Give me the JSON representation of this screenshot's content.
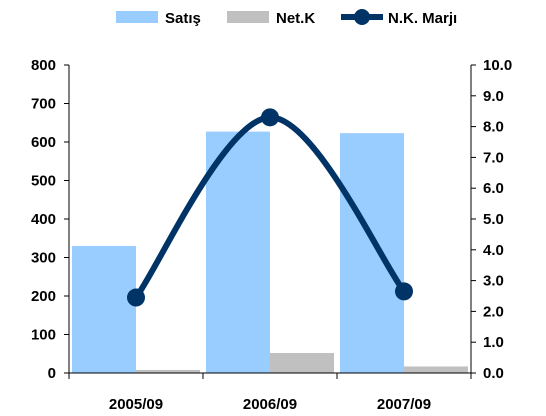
{
  "chart_data": {
    "type": "bar",
    "categories": [
      "2005/09",
      "2006/09",
      "2007/09"
    ],
    "series": [
      {
        "name": "Satış",
        "kind": "bar",
        "axis": "left",
        "color": "#99CCFF",
        "values": [
          330,
          627,
          623
        ]
      },
      {
        "name": "Net.K",
        "kind": "bar",
        "axis": "left",
        "color": "#C0C0C0",
        "values": [
          8,
          52,
          17
        ]
      },
      {
        "name": "N.K. Marjı",
        "kind": "line",
        "axis": "right",
        "color": "#003366",
        "values": [
          2.45,
          8.3,
          2.65
        ]
      }
    ],
    "y_left": {
      "min": 0,
      "max": 800,
      "ticks": [
        "0",
        "100",
        "200",
        "300",
        "400",
        "500",
        "600",
        "700",
        "800"
      ]
    },
    "y_right": {
      "min": 0,
      "max": 10,
      "ticks": [
        "0.0",
        "1.0",
        "2.0",
        "3.0",
        "4.0",
        "5.0",
        "6.0",
        "7.0",
        "8.0",
        "9.0",
        "10.0"
      ]
    },
    "legend_position": "top-center",
    "grid": false
  }
}
